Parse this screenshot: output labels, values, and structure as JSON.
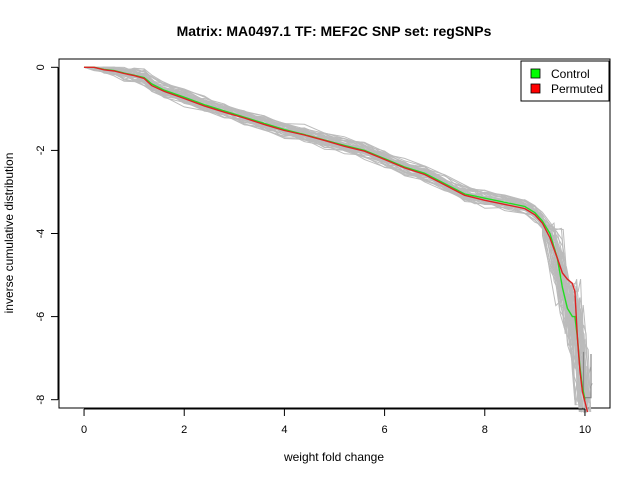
{
  "chart_data": {
    "type": "line",
    "title": "Matrix: MA0497.1 TF: MEF2C SNP set: regSNPs",
    "xlabel": "weight fold change",
    "ylabel": "inverse cumulative distribution",
    "xlim": [
      -0.5,
      10.5
    ],
    "ylim": [
      -8.2,
      0.2
    ],
    "x_ticks": [
      "0",
      "2",
      "4",
      "6",
      "8",
      "10"
    ],
    "y_ticks": [
      "0",
      "-2",
      "-4",
      "-6",
      "-8"
    ],
    "legend": {
      "placement": "top-right",
      "entries": [
        {
          "label": "Control",
          "color": "#00ff00"
        },
        {
          "label": "Permuted",
          "color": "#ff0000"
        }
      ]
    },
    "colors": {
      "control": "#22dd22",
      "permuted": "#dd2222",
      "background_runs": "#bbbbbb",
      "bracket": "#888888"
    },
    "background_run_count": 40,
    "series": [
      {
        "name": "Control",
        "x": [
          0,
          0.2,
          0.4,
          0.6,
          0.8,
          1.0,
          1.2,
          1.35,
          1.6,
          2.0,
          2.4,
          2.8,
          3.2,
          3.6,
          4.0,
          4.4,
          4.8,
          5.2,
          5.6,
          6.0,
          6.4,
          6.8,
          7.2,
          7.6,
          7.8,
          8.0,
          8.4,
          8.8,
          9.0,
          9.15,
          9.3,
          9.45,
          9.55,
          9.65,
          9.75,
          9.8,
          9.85,
          9.9,
          9.95,
          10.0
        ],
        "y": [
          0,
          0,
          -0.05,
          -0.08,
          -0.14,
          -0.19,
          -0.25,
          -0.4,
          -0.55,
          -0.72,
          -0.9,
          -1.05,
          -1.2,
          -1.35,
          -1.5,
          -1.62,
          -1.75,
          -1.88,
          -2.0,
          -2.2,
          -2.4,
          -2.55,
          -2.8,
          -3.05,
          -3.1,
          -3.15,
          -3.25,
          -3.35,
          -3.5,
          -3.7,
          -4.0,
          -4.6,
          -5.3,
          -5.8,
          -6.0,
          -6.0,
          -6.5,
          -7.2,
          -7.7,
          -8.0
        ]
      },
      {
        "name": "Permuted",
        "x": [
          0,
          0.2,
          0.4,
          0.6,
          0.8,
          1.0,
          1.2,
          1.35,
          1.6,
          2.0,
          2.4,
          2.8,
          3.2,
          3.6,
          4.0,
          4.4,
          4.8,
          5.2,
          5.6,
          6.0,
          6.4,
          6.8,
          7.2,
          7.6,
          7.8,
          8.0,
          8.4,
          8.8,
          9.0,
          9.15,
          9.3,
          9.45,
          9.55,
          9.65,
          9.75,
          9.8,
          9.85,
          9.9,
          9.95,
          10.05
        ],
        "y": [
          0,
          0,
          -0.06,
          -0.09,
          -0.15,
          -0.2,
          -0.27,
          -0.44,
          -0.58,
          -0.75,
          -0.93,
          -1.08,
          -1.22,
          -1.38,
          -1.52,
          -1.63,
          -1.76,
          -1.9,
          -2.02,
          -2.22,
          -2.42,
          -2.58,
          -2.83,
          -3.08,
          -3.14,
          -3.2,
          -3.3,
          -3.4,
          -3.55,
          -3.75,
          -4.1,
          -4.6,
          -4.95,
          -5.1,
          -5.2,
          -5.4,
          -6.5,
          -7.3,
          -7.8,
          -8.3
        ]
      }
    ]
  }
}
